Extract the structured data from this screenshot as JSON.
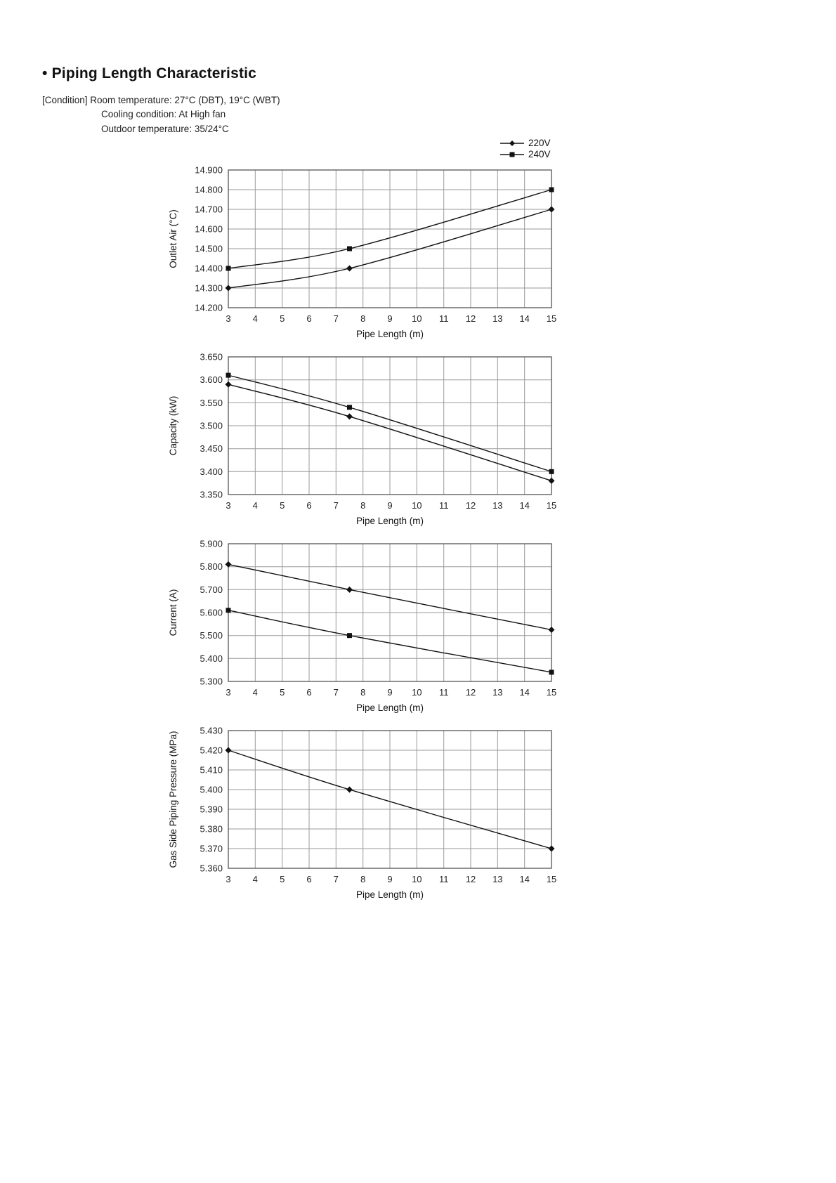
{
  "page": {
    "title": "• Piping Length Characteristic",
    "conditions": {
      "line1": "[Condition] Room temperature: 27°C (DBT), 19°C (WBT)",
      "line2": "Cooling condition: At High fan",
      "line3": "Outdoor temperature: 35/24°C"
    }
  },
  "legend": {
    "items": [
      {
        "label": "220V",
        "marker": "diamond"
      },
      {
        "label": "240V",
        "marker": "square"
      }
    ]
  },
  "chart_data": [
    {
      "type": "line",
      "title": "",
      "ylabel": "Outlet Air (°C)",
      "xlabel": "Pipe Length (m)",
      "xlim": [
        3,
        15
      ],
      "xtick_step": 1,
      "ylim": [
        14.2,
        14.9
      ],
      "ytick_step": 0.1,
      "tick_decimals": 3,
      "grid": true,
      "legend_position": "top-right",
      "x": [
        3,
        7.5,
        15
      ],
      "series": [
        {
          "name": "220V",
          "marker": "diamond",
          "values": [
            14.3,
            14.4,
            14.7
          ]
        },
        {
          "name": "240V",
          "marker": "square",
          "values": [
            14.4,
            14.5,
            14.8
          ]
        }
      ]
    },
    {
      "type": "line",
      "title": "",
      "ylabel": "Capacity (kW)",
      "xlabel": "Pipe Length (m)",
      "xlim": [
        3,
        15
      ],
      "xtick_step": 1,
      "ylim": [
        3.35,
        3.65
      ],
      "ytick_step": 0.05,
      "tick_decimals": 3,
      "grid": true,
      "x": [
        3,
        7.5,
        15
      ],
      "series": [
        {
          "name": "220V",
          "marker": "diamond",
          "values": [
            3.59,
            3.52,
            3.38
          ]
        },
        {
          "name": "240V",
          "marker": "square",
          "values": [
            3.61,
            3.54,
            3.4
          ]
        }
      ]
    },
    {
      "type": "line",
      "title": "",
      "ylabel": "Current (A)",
      "xlabel": "Pipe Length (m)",
      "xlim": [
        3,
        15
      ],
      "xtick_step": 1,
      "ylim": [
        5.3,
        5.9
      ],
      "ytick_step": 0.1,
      "tick_decimals": 3,
      "grid": true,
      "x": [
        3,
        7.5,
        15
      ],
      "series": [
        {
          "name": "220V",
          "marker": "diamond",
          "values": [
            5.81,
            5.7,
            5.525
          ]
        },
        {
          "name": "240V",
          "marker": "square",
          "values": [
            5.61,
            5.5,
            5.34
          ]
        }
      ]
    },
    {
      "type": "line",
      "title": "",
      "ylabel": "Gas Side Piping Pressure (MPa)",
      "xlabel": "Pipe Length (m)",
      "xlim": [
        3,
        15
      ],
      "xtick_step": 1,
      "ylim": [
        5.36,
        5.43
      ],
      "ytick_step": 0.01,
      "tick_decimals": 3,
      "grid": true,
      "x": [
        3,
        7.5,
        15
      ],
      "series": [
        {
          "name": "220V",
          "marker": "diamond",
          "values": [
            5.42,
            5.4,
            5.37
          ]
        }
      ]
    }
  ]
}
